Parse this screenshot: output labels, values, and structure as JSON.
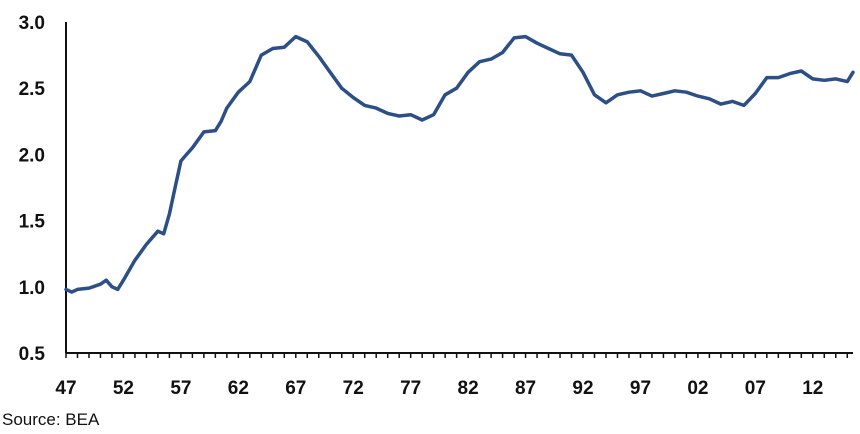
{
  "chart_data": {
    "type": "line",
    "title": "",
    "xlabel": "",
    "ylabel": "",
    "xlim": [
      1947,
      2015.5
    ],
    "ylim": [
      0.5,
      3.0
    ],
    "grid": false,
    "legend": "none",
    "line_color": "#2b4f86",
    "y_ticks": [
      0.5,
      1.0,
      1.5,
      2.0,
      2.5,
      3.0
    ],
    "y_tick_labels": [
      "0.5",
      "1.0",
      "1.5",
      "2.0",
      "2.5",
      "3.0"
    ],
    "x_tick_years": [
      1947,
      1952,
      1957,
      1962,
      1967,
      1972,
      1977,
      1982,
      1987,
      1992,
      1997,
      2002,
      2007,
      2012
    ],
    "x_tick_labels": [
      "47",
      "52",
      "57",
      "62",
      "67",
      "72",
      "77",
      "82",
      "87",
      "92",
      "97",
      "02",
      "07",
      "12"
    ],
    "series": [
      {
        "x": [
          1947,
          1947.5,
          1948,
          1949,
          1950,
          1950.5,
          1951,
          1951.5,
          1952,
          1953,
          1954,
          1955,
          1955.5,
          1956,
          1956.5,
          1957,
          1957.5,
          1958,
          1959,
          1960,
          1960.5,
          1961,
          1962,
          1963,
          1964,
          1965,
          1966,
          1966.5,
          1967,
          1968,
          1969,
          1970,
          1971,
          1972,
          1973,
          1974,
          1975,
          1976,
          1977,
          1978,
          1979,
          1980,
          1981,
          1982,
          1983,
          1984,
          1985,
          1986,
          1987,
          1988,
          1989,
          1990,
          1991,
          1992,
          1993,
          1994,
          1995,
          1996,
          1997,
          1998,
          1999,
          2000,
          2001,
          2002,
          2003,
          2004,
          2005,
          2006,
          2007,
          2008,
          2009,
          2010,
          2011,
          2012,
          2013,
          2014,
          2015,
          2015.5
        ],
        "values": [
          0.98,
          0.96,
          0.98,
          0.99,
          1.02,
          1.05,
          1.0,
          0.98,
          1.05,
          1.2,
          1.32,
          1.42,
          1.4,
          1.55,
          1.75,
          1.95,
          2.0,
          2.05,
          2.17,
          2.18,
          2.25,
          2.35,
          2.47,
          2.55,
          2.75,
          2.8,
          2.81,
          2.85,
          2.89,
          2.85,
          2.74,
          2.62,
          2.5,
          2.43,
          2.37,
          2.35,
          2.31,
          2.29,
          2.3,
          2.26,
          2.3,
          2.45,
          2.5,
          2.62,
          2.7,
          2.72,
          2.77,
          2.88,
          2.89,
          2.84,
          2.8,
          2.76,
          2.75,
          2.62,
          2.45,
          2.39,
          2.45,
          2.47,
          2.48,
          2.44,
          2.46,
          2.48,
          2.47,
          2.44,
          2.42,
          2.38,
          2.4,
          2.37,
          2.46,
          2.58,
          2.58,
          2.61,
          2.63,
          2.57,
          2.56,
          2.57,
          2.55,
          2.62
        ]
      }
    ]
  },
  "source": "Source: BEA"
}
